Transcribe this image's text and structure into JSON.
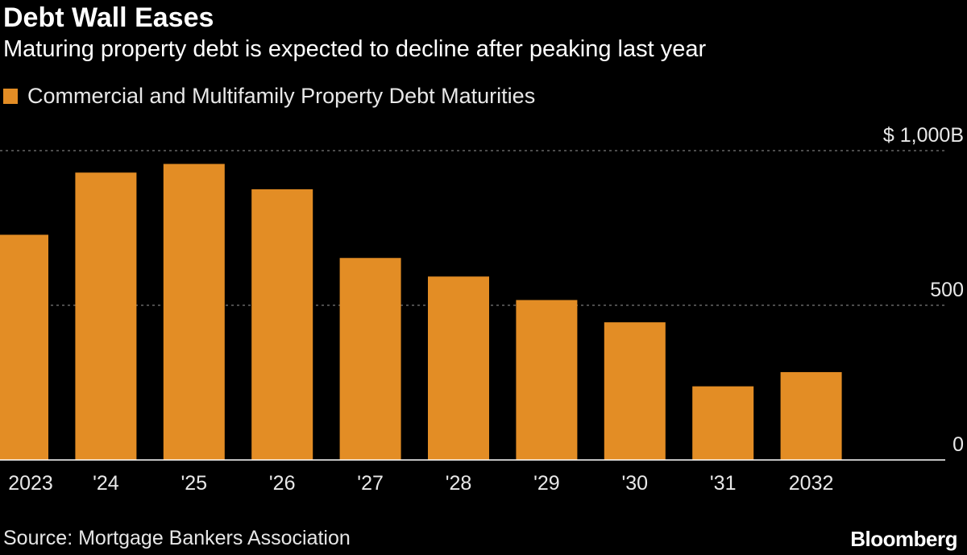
{
  "title": "Debt Wall Eases",
  "subtitle": "Maturing property debt is expected to decline after peaking last year",
  "source": "Source: Mortgage Bankers Association",
  "brand": "Bloomberg",
  "colors": {
    "background": "#000000",
    "bar": "#e38d25",
    "text": "#ffffff",
    "grid": "#7a7a7a"
  },
  "chart_data": {
    "type": "bar",
    "title": "Debt Wall Eases",
    "subtitle": "Maturing property debt is expected to decline after peaking last year",
    "categories": [
      "2023",
      "'24",
      "'25",
      "'26",
      "'27",
      "'28",
      "'29",
      "'30",
      "'31",
      "2032"
    ],
    "series": [
      {
        "name": "Commercial and Multifamily Property Debt Maturities",
        "values": [
          728,
          929,
          957,
          875,
          653,
          593,
          517,
          445,
          238,
          284
        ]
      }
    ],
    "ylim": [
      0,
      1000
    ],
    "yticks": [
      {
        "value": 0,
        "label": "0"
      },
      {
        "value": 500,
        "label": "500"
      },
      {
        "value": 1000,
        "label": "$ 1,000B"
      }
    ],
    "y_axis_side": "right",
    "grid": true,
    "legend": "top-left"
  }
}
